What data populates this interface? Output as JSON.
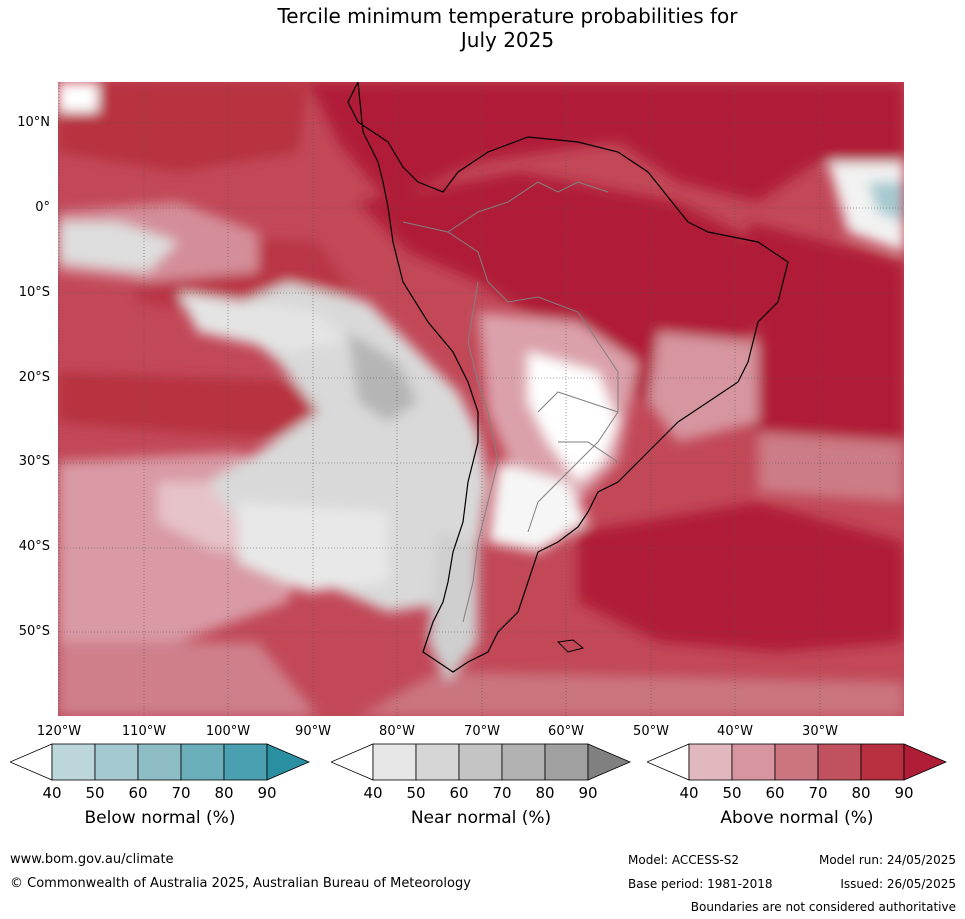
{
  "title_line1": "Tercile minimum temperature probabilities for",
  "title_line2": "July 2025",
  "lat_labels": [
    "10°N",
    "0°",
    "10°S",
    "20°S",
    "30°S",
    "40°S",
    "50°S"
  ],
  "lon_labels": [
    "120°W",
    "110°W",
    "100°W",
    "90°W",
    "80°W",
    "70°W",
    "60°W",
    "50°W",
    "40°W",
    "30°W"
  ],
  "colorbars": [
    {
      "title": "Below normal (%)",
      "ticks": [
        "40",
        "50",
        "60",
        "70",
        "80",
        "90"
      ],
      "colors": [
        "#ffffff",
        "#bcd6dc",
        "#a5c9d0",
        "#8dbcc4",
        "#6aaeba",
        "#4aa0b0",
        "#2a8fa0"
      ]
    },
    {
      "title": "Near normal (%)",
      "ticks": [
        "40",
        "50",
        "60",
        "70",
        "80",
        "90"
      ],
      "colors": [
        "#ffffff",
        "#e6e6e6",
        "#d6d6d6",
        "#c4c4c4",
        "#b2b2b2",
        "#a0a0a0",
        "#808080"
      ]
    },
    {
      "title": "Above normal (%)",
      "ticks": [
        "40",
        "50",
        "60",
        "70",
        "80",
        "90"
      ],
      "colors": [
        "#ffffff",
        "#e2b8bf",
        "#d6959f",
        "#ca7580",
        "#c0515f",
        "#b8303f",
        "#b01d37"
      ]
    }
  ],
  "footer": {
    "website": "www.bom.gov.au/climate",
    "copyright": "© Commonwealth of Australia 2025, Australian Bureau of Meteorology",
    "model": "Model: ACCESS-S2",
    "base_period": "Base period: 1981-2018",
    "model_run": "Model run: 24/05/2025",
    "issued": "Issued: 26/05/2025",
    "disclaimer": "Boundaries are not considered authoritative"
  }
}
